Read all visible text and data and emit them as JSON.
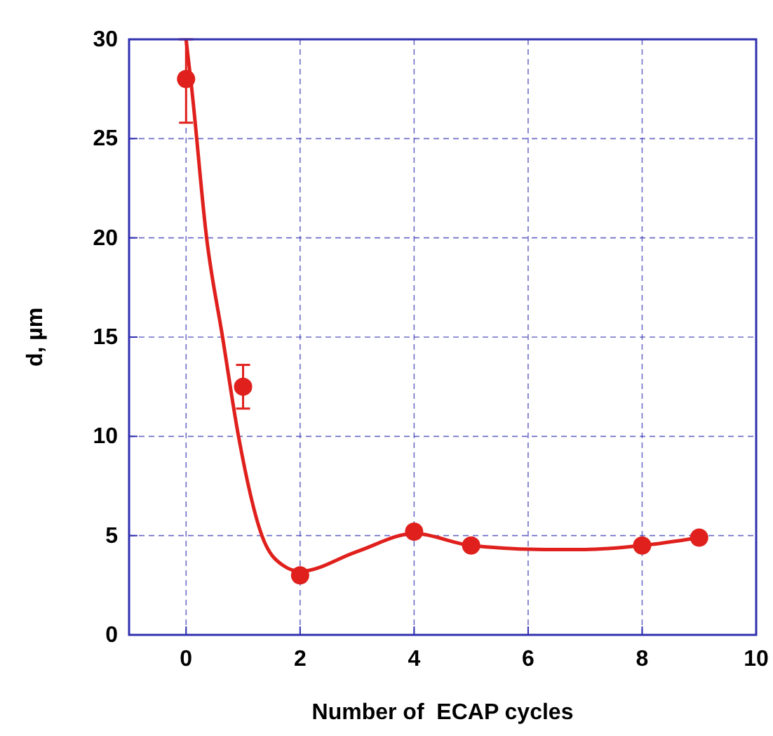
{
  "chart_data": {
    "type": "scatter",
    "xlabel": "Number of  ECAP cycles",
    "ylabel": "d, µm",
    "xlim": [
      -1,
      10
    ],
    "ylim": [
      0,
      30
    ],
    "xticks": [
      0,
      2,
      4,
      6,
      8,
      10
    ],
    "yticks": [
      0,
      5,
      10,
      15,
      20,
      25,
      30
    ],
    "grid": true,
    "series": [
      {
        "type": "line",
        "color": "#e0201c",
        "x": [
          0,
          0.1,
          0.36,
          0.64,
          0.92,
          1.33,
          1.7,
          2,
          3,
          4,
          5,
          6.3,
          7,
          8,
          9
        ],
        "values": [
          30,
          27.5,
          20,
          15,
          10,
          5,
          3.5,
          3.2,
          4.2,
          5.1,
          4.5,
          4.3,
          4.3,
          4.5,
          4.9
        ],
        "marker": "none",
        "line_style": "solid"
      },
      {
        "color": "#e0201c",
        "x": [
          0,
          1,
          2,
          4,
          5,
          8,
          9
        ],
        "values": [
          28,
          12.5,
          3,
          5.2,
          4.5,
          4.5,
          4.9
        ],
        "errors": [
          [
            25.8,
            30
          ],
          [
            11.4,
            13.6
          ],
          null,
          null,
          null,
          null,
          null
        ],
        "marker": "circle"
      }
    ]
  }
}
